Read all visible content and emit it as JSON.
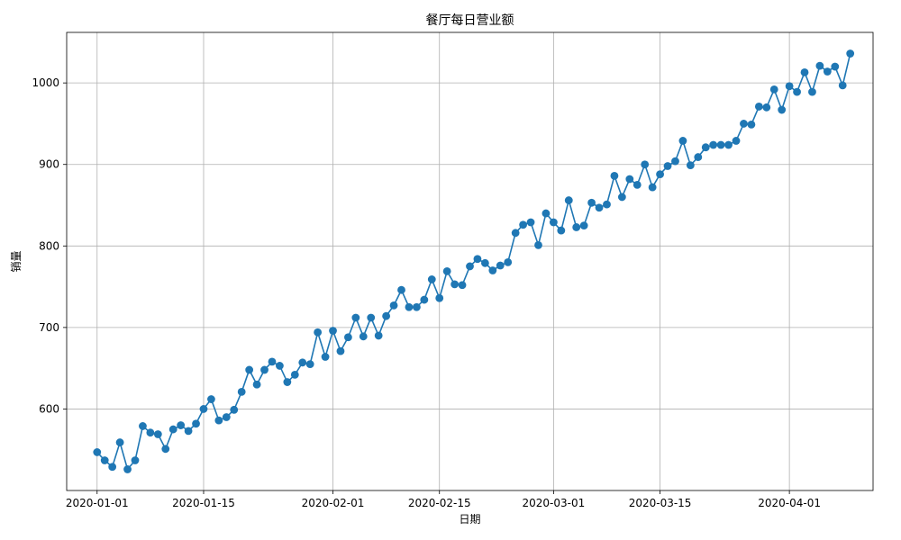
{
  "chart_data": {
    "type": "line",
    "title": "餐厅每日营业额",
    "xlabel": "日期",
    "ylabel": "销量",
    "grid": true,
    "line_color": "#1f77b4",
    "marker": "circle",
    "x_ticks": [
      "2020-01-01",
      "2020-01-15",
      "2020-02-01",
      "2020-02-15",
      "2020-03-01",
      "2020-03-15",
      "2020-04-01"
    ],
    "y_ticks": [
      600,
      700,
      800,
      900,
      1000
    ],
    "xlim": [
      "2019-12-28",
      "2020-04-12"
    ],
    "ylim": [
      500,
      1062
    ],
    "x_start": "2020-01-01",
    "x_end": "2020-04-09",
    "series": [
      {
        "values": [
          547,
          537,
          529,
          559,
          526,
          537,
          579,
          571,
          569,
          551,
          575,
          580,
          573,
          582,
          600,
          612,
          586,
          590,
          599,
          621,
          648,
          630,
          648,
          658,
          653,
          633,
          642,
          657,
          655,
          694,
          664,
          696,
          671,
          688,
          712,
          689,
          712,
          690,
          714,
          727,
          746,
          725,
          725,
          734,
          759,
          736,
          769,
          753,
          752,
          775,
          784,
          779,
          770,
          776,
          780,
          816,
          826,
          829,
          801,
          840,
          829,
          819,
          856,
          823,
          825,
          853,
          847,
          851,
          886,
          860,
          882,
          875,
          900,
          872,
          888,
          898,
          904,
          929,
          899,
          909,
          921,
          924,
          924,
          924,
          929,
          950,
          949,
          971,
          970,
          992,
          967,
          996,
          989,
          1013,
          989,
          1021,
          1014,
          1020,
          997,
          1036
        ]
      }
    ]
  }
}
